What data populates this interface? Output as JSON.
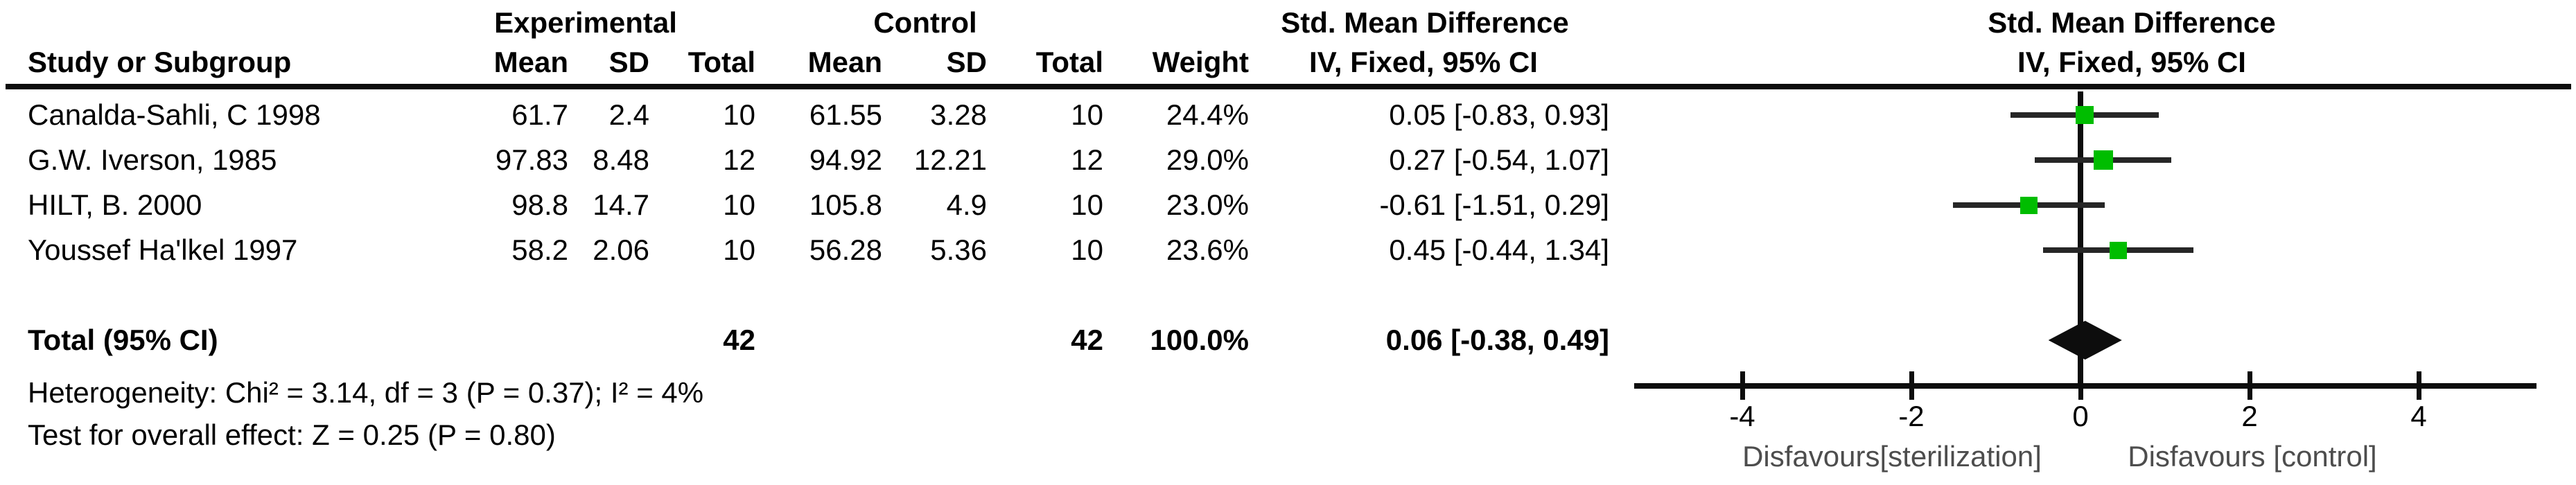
{
  "table": {
    "group_headers": {
      "experimental": "Experimental",
      "control": "Control",
      "smd_stat": "Std. Mean Difference",
      "smd_plot": "Std. Mean Difference"
    },
    "col_headers": {
      "study": "Study or Subgroup",
      "mean": "Mean",
      "sd": "SD",
      "total": "Total",
      "weight": "Weight",
      "ci_stat": "IV, Fixed, 95% CI",
      "ci_plot": "IV, Fixed, 95% CI"
    },
    "rows": [
      {
        "study": "Canalda-Sahli, C 1998",
        "mean_e": "61.7",
        "sd_e": "2.4",
        "total_e": "10",
        "mean_c": "61.55",
        "sd_c": "3.28",
        "total_c": "10",
        "weight": "24.4%",
        "smd_ci": "0.05 [-0.83, 0.93]"
      },
      {
        "study": "G.W. Iverson, 1985",
        "mean_e": "97.83",
        "sd_e": "8.48",
        "total_e": "12",
        "mean_c": "94.92",
        "sd_c": "12.21",
        "total_c": "12",
        "weight": "29.0%",
        "smd_ci": "0.27 [-0.54, 1.07]"
      },
      {
        "study": "HILT, B. 2000",
        "mean_e": "98.8",
        "sd_e": "14.7",
        "total_e": "10",
        "mean_c": "105.8",
        "sd_c": "4.9",
        "total_c": "10",
        "weight": "23.0%",
        "smd_ci": "-0.61 [-1.51, 0.29]"
      },
      {
        "study": "Youssef Ha'lkel 1997",
        "mean_e": "58.2",
        "sd_e": "2.06",
        "total_e": "10",
        "mean_c": "56.28",
        "sd_c": "5.36",
        "total_c": "10",
        "weight": "23.6%",
        "smd_ci": "0.45 [-0.44, 1.34]"
      }
    ],
    "total_row": {
      "label": "Total (95% CI)",
      "total_e": "42",
      "total_c": "42",
      "weight": "100.0%",
      "smd_ci": "0.06 [-0.38, 0.49]"
    },
    "heterogeneity": "Heterogeneity: Chi² = 3.14, df = 3 (P = 0.37); I² = 4%",
    "overall_effect": "Test for overall effect: Z = 0.25 (P = 0.80)"
  },
  "chart_data": {
    "type": "forest",
    "title": "Std. Mean Difference",
    "effect_model": "IV, Fixed, 95% CI",
    "x_ticks": [
      -4,
      -2,
      0,
      2,
      4
    ],
    "xlim": [
      -5.3,
      5.4
    ],
    "axis_label_left": "Disfavours[sterilization]",
    "axis_label_right": "Disfavours [control]",
    "studies": [
      {
        "label": "Canalda-Sahli, C 1998",
        "est": 0.05,
        "lo": -0.83,
        "hi": 0.93,
        "weight_pct": 24.4
      },
      {
        "label": "G.W. Iverson, 1985",
        "est": 0.27,
        "lo": -0.54,
        "hi": 1.07,
        "weight_pct": 29.0
      },
      {
        "label": "HILT, B. 2000",
        "est": -0.61,
        "lo": -1.51,
        "hi": 0.29,
        "weight_pct": 23.0
      },
      {
        "label": "Youssef Ha'lkel 1997",
        "est": 0.45,
        "lo": -0.44,
        "hi": 1.34,
        "weight_pct": 23.6
      }
    ],
    "total": {
      "label": "Total (95% CI)",
      "est": 0.06,
      "lo": -0.38,
      "hi": 0.49,
      "weight_pct": 100.0
    },
    "colors": {
      "marker_green": "#00bd00",
      "ci_line": "#262626",
      "diamond": "#0d0d0d",
      "axis": "#0d0d0d",
      "direction_labels": "#4d4d4d"
    }
  }
}
